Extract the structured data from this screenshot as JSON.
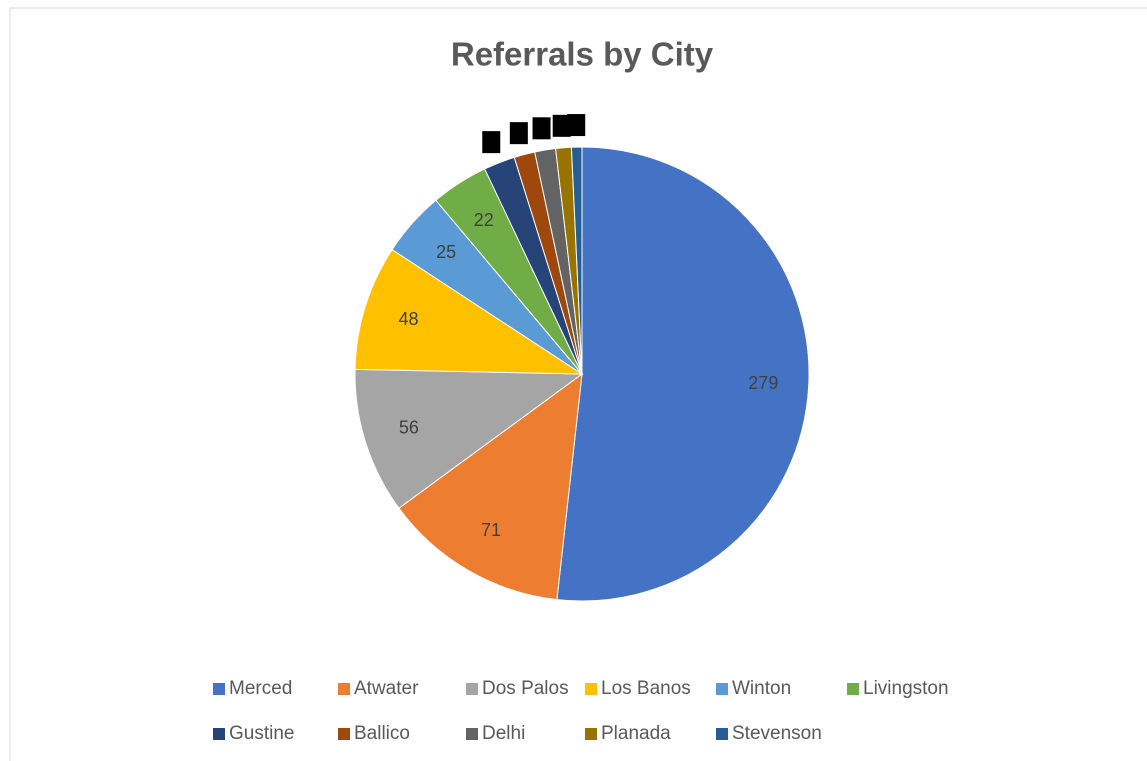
{
  "chart_data": {
    "type": "pie",
    "title": "Referrals by City",
    "categories": [
      "Merced",
      "Atwater",
      "Dos Palos",
      "Los Banos",
      "Winton",
      "Livingston",
      "Gustine",
      "Ballico",
      "Delhi",
      "Planada",
      "Stevenson"
    ],
    "values": [
      279,
      71,
      56,
      48,
      25,
      22,
      12,
      8,
      8,
      6,
      4
    ],
    "colors": [
      "#4472c4",
      "#ed7d31",
      "#a5a5a5",
      "#ffc000",
      "#5b9bd5",
      "#70ad47",
      "#264478",
      "#9e480e",
      "#636363",
      "#997300",
      "#255e91"
    ],
    "legend": "bottom"
  }
}
